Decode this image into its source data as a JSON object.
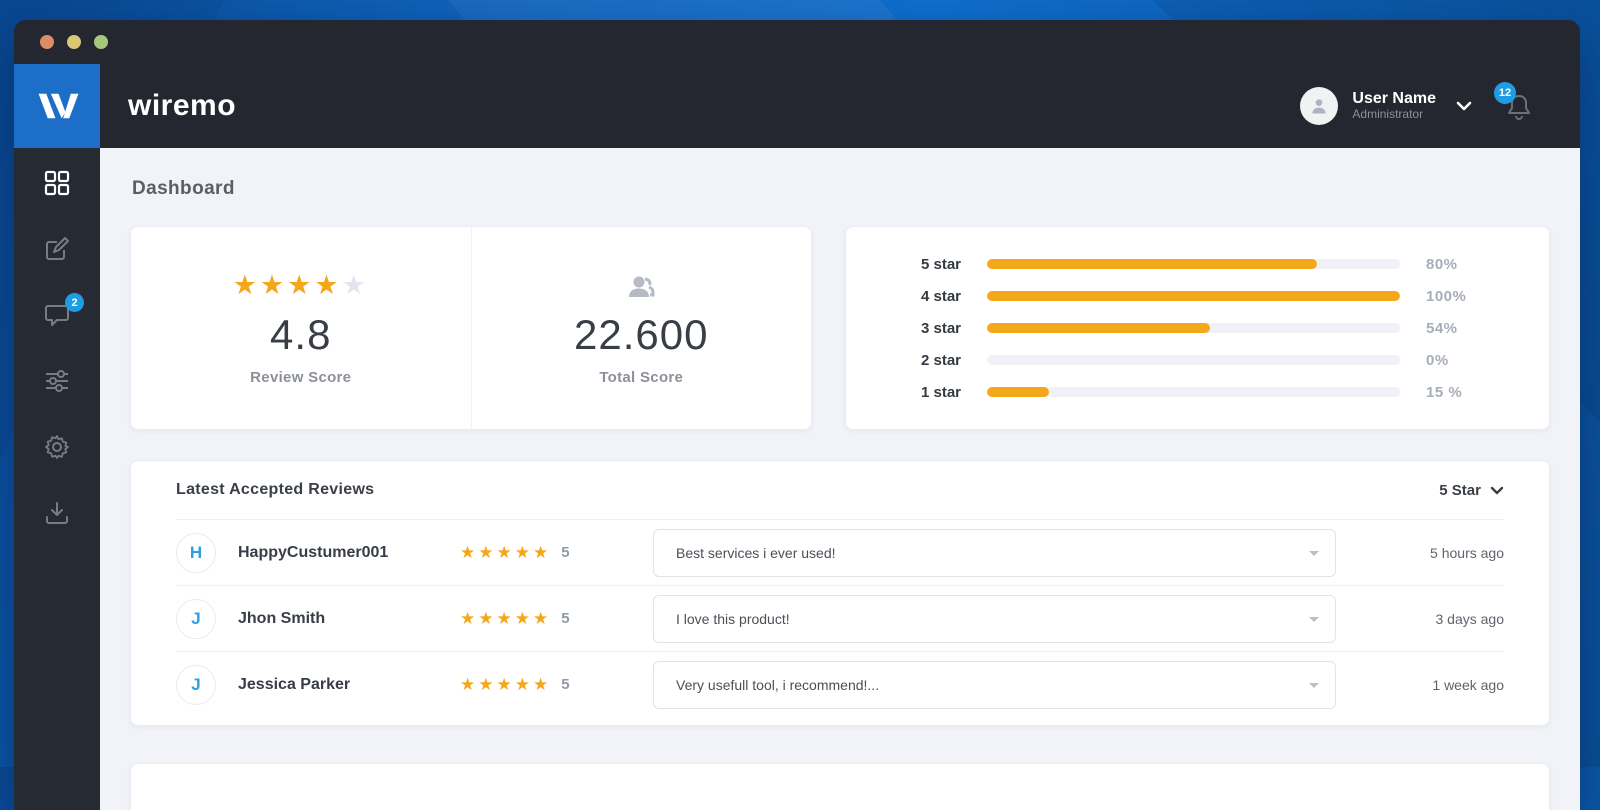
{
  "colors": {
    "brand_blue": "#1d6ec9",
    "accent_blue": "#1f9ce4",
    "star_orange": "#f5a71a",
    "header_dark": "#24272f",
    "sidebar_dark": "#262a33",
    "content_bg": "#f1f3f8"
  },
  "brand": {
    "logo_text": "wiremo"
  },
  "header": {
    "user_name": "User Name",
    "user_role": "Administrator",
    "notification_count": "12"
  },
  "sidebar": {
    "active_item": "dashboard",
    "items": [
      "dashboard",
      "compose",
      "reviews",
      "filters",
      "settings",
      "export"
    ],
    "reviews_badge": "2"
  },
  "page": {
    "title": "Dashboard"
  },
  "score_card": {
    "stars_filled": 4,
    "stars_total": 5,
    "rating_value": "4.8",
    "rating_label": "Review Score",
    "total_value": "22.600",
    "total_label": "Total Score"
  },
  "chart_data": {
    "type": "bar",
    "orientation": "horizontal",
    "categories": [
      "5 star",
      "4 star",
      "3 star",
      "2 star",
      "1 star"
    ],
    "values": [
      80,
      100,
      54,
      0,
      15
    ],
    "value_labels": [
      "80%",
      "100%",
      "54%",
      "0%",
      "15 %"
    ],
    "xlim": [
      0,
      100
    ],
    "bar_color": "#f5a71a",
    "track_color": "#f0f2f7",
    "grid": false,
    "legend": false
  },
  "reviews": {
    "title": "Latest Accepted Reviews",
    "filter_label": "5 Star",
    "rows": [
      {
        "initial": "H",
        "name": "HappyCustumer001",
        "stars": 5,
        "stars_count": "5",
        "comment": "Best services i ever used!",
        "time": "5 hours ago"
      },
      {
        "initial": "J",
        "name": "Jhon Smith",
        "stars": 5,
        "stars_count": "5",
        "comment": "I love this product!",
        "time": "3 days ago"
      },
      {
        "initial": "J",
        "name": "Jessica Parker",
        "stars": 5,
        "stars_count": "5",
        "comment": "Very usefull tool, i recommend!...",
        "time": "1 week ago"
      }
    ]
  }
}
